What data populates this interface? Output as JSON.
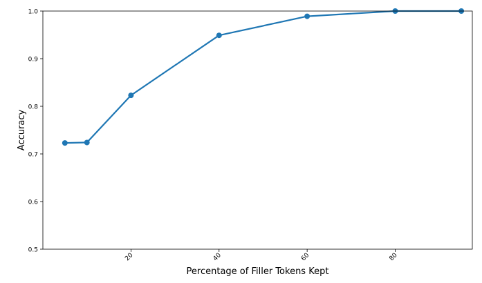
{
  "chart_data": {
    "type": "line",
    "title": "",
    "xlabel": "Percentage of Filler Tokens Kept",
    "ylabel": "Accuracy",
    "xlim": [
      0,
      97.5
    ],
    "ylim": [
      0.5,
      1.0
    ],
    "xticks": [
      20,
      40,
      60,
      80
    ],
    "xtick_labels": [
      "20",
      "40",
      "60",
      "80"
    ],
    "xtick_rotation": 45,
    "yticks": [
      0.5,
      0.6,
      0.7,
      0.8,
      0.9,
      1.0
    ],
    "ytick_labels": [
      "0.5",
      "0.6",
      "0.7",
      "0.8",
      "0.9",
      "1.0"
    ],
    "grid": false,
    "legend": "none",
    "series": [
      {
        "color": "#1f77b4",
        "marker": "circle",
        "x": [
          5,
          10,
          20,
          40,
          60,
          80,
          95
        ],
        "y": [
          0.723,
          0.724,
          0.823,
          0.949,
          0.989,
          1.0,
          1.0
        ]
      }
    ]
  }
}
